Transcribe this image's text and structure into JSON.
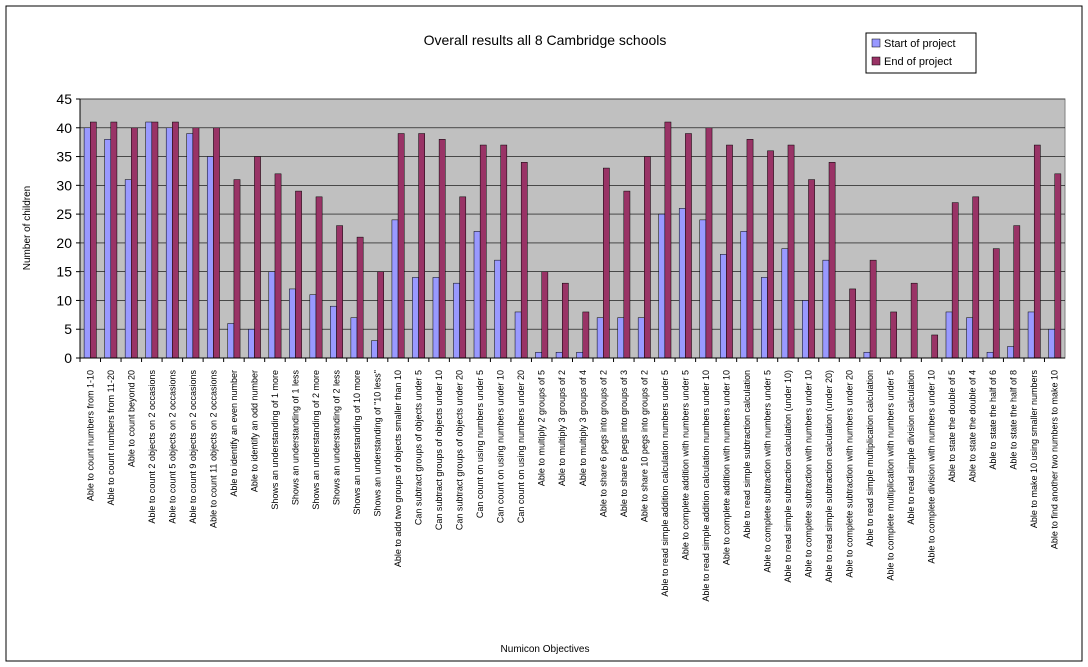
{
  "chart_data": {
    "type": "bar",
    "title": "Overall results all 8 Cambridge schools",
    "xlabel": "Numicon Objectives",
    "ylabel": "Number of children",
    "ylim": [
      0,
      45
    ],
    "yticks": [
      "0",
      "5",
      "10",
      "15",
      "20",
      "25",
      "30",
      "35",
      "40",
      "45"
    ],
    "grid": true,
    "legend_position": "top-right",
    "colors": {
      "start": "#9999FF",
      "end": "#993366",
      "plot_bg": "#C0C0C0",
      "frame": "#000000"
    },
    "categories": [
      "Able to count numbers from 1-10",
      "Able to count numbers from 11-20",
      "Able to count beyond 20",
      "Able to count 2 objects on 2 occasions",
      "Able to count 5 objects on 2 occasions",
      "Able to count 9 objects on 2 occasions",
      "Able to count 11 objects on 2 occasions",
      "Able to identify an even number",
      "Able to identify an odd number",
      "Shows an understanding of 1 more",
      "Shows an understanding of 1 less",
      "Shows an understanding of 2 more",
      "Shows an understanding of 2 less",
      "Shows an understanding of  10 more",
      "Shows an understanding of \"10 less\"",
      "Able to add two groups of objects smaller than 10",
      "Can subtract groups of objects under 5",
      "Can subtract groups of objects under 10",
      "Can subtract groups of objects under 20",
      "Can count on using numbers under 5",
      "Can count on using numbers under 10",
      "Can count on using numbers under 20",
      "Able to multiply 2 groups of 5",
      "Able to multiply 3 groups of 2",
      "Able to multiply 3 groups of 4",
      "Able to share 6 pegs into groups of 2",
      "Able to share 6 pegs into groups of 3",
      "Able to share 10 pegs into groups of 2",
      "Able to read simple addition calculation numbers under 5",
      "Able to complete addition with numbers under 5",
      "Able to read simple addition calculation numbers under 10",
      "Able to complete addition with numbers under 10",
      "Able to read simple subtraction calculation",
      "Able to complete subtraction with numbers under 5",
      "Able to read simple subtraction calculation (under 10)",
      "Able to complete subtraction with numbers under 10",
      "Able to read simple subtraction calculation (under 20)",
      "Able to complete subtraction with numbers under 20",
      "Able to read simple multiplication calculation",
      "Able to complete multiplication with numbers under 5",
      "Able to read simple division calculation",
      "Able to complete division with numbers under 10",
      "Able to state the double of 5",
      "Able to state the double of 4",
      "Able to state the half of 6",
      "Able to state the half of 8",
      "Able to make 10 using smaller numbers",
      "Able to find another two numbers to make 10"
    ],
    "series": [
      {
        "name": "Start of project",
        "values": [
          40,
          38,
          31,
          41,
          40,
          39,
          35,
          6,
          5,
          15,
          12,
          11,
          9,
          7,
          3,
          24,
          14,
          14,
          13,
          22,
          17,
          8,
          1,
          1,
          1,
          7,
          7,
          7,
          25,
          26,
          24,
          18,
          22,
          14,
          19,
          10,
          17,
          0,
          1,
          0,
          0,
          0,
          8,
          7,
          1,
          2,
          8,
          5
        ]
      },
      {
        "name": "End of project",
        "values": [
          41,
          41,
          40,
          41,
          41,
          40,
          40,
          31,
          35,
          32,
          29,
          28,
          23,
          21,
          15,
          39,
          39,
          38,
          28,
          37,
          37,
          34,
          15,
          13,
          8,
          33,
          29,
          35,
          41,
          39,
          40,
          37,
          38,
          36,
          37,
          31,
          34,
          12,
          17,
          8,
          13,
          4,
          27,
          28,
          19,
          23,
          37,
          32
        ]
      }
    ]
  }
}
